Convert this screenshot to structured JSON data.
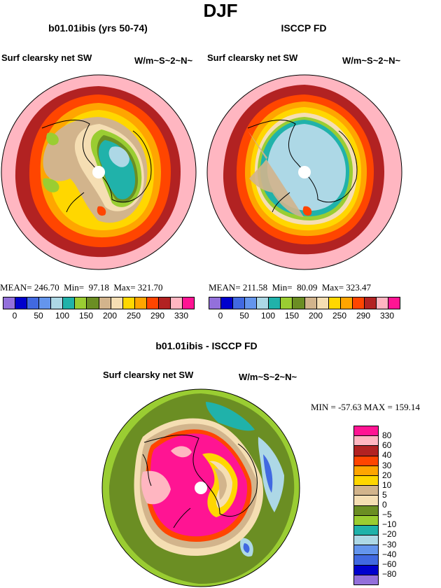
{
  "figure": {
    "season_title": "DJF",
    "variable": "Surf clearsky net SW",
    "units": "W/m~S~2~N~"
  },
  "panels": [
    {
      "title": "b01.01ibis (yrs 50-74)",
      "stats_text": "MEAN= 246.70  Min=  97.18  Max= 321.70",
      "mean": 246.7,
      "min": 97.18,
      "max": 321.7
    },
    {
      "title": "ISCCP FD",
      "stats_text": "MEAN= 211.58  Min=  80.09  Max= 323.47",
      "mean": 211.58,
      "min": 80.09,
      "max": 323.47
    }
  ],
  "diff_panel": {
    "title": "b01.01ibis - ISCCP FD",
    "minmax_text": "MIN = -57.63 MAX = 159.14",
    "min": -57.63,
    "max": 159.14
  },
  "colorbar_top": {
    "colors": [
      "#9370db",
      "#0000cd",
      "#4169e1",
      "#6495ed",
      "#add8e6",
      "#20b2aa",
      "#9acd32",
      "#6b8e23",
      "#d2b48c",
      "#f5deb3",
      "#ffd700",
      "#ffa500",
      "#ff4500",
      "#b22222",
      "#ffb6c1",
      "#ff1493"
    ],
    "labels": [
      "0",
      "50",
      "100",
      "150",
      "200",
      "250",
      "290",
      "330"
    ]
  },
  "colorbar_diff": {
    "colors": [
      "#ff1493",
      "#ffb6c1",
      "#b22222",
      "#ff4500",
      "#ffa500",
      "#ffd700",
      "#d2b48c",
      "#f5deb3",
      "#6b8e23",
      "#9acd32",
      "#20b2aa",
      "#add8e6",
      "#6495ed",
      "#4169e1",
      "#0000cd",
      "#9370db"
    ],
    "labels": [
      "80",
      "60",
      "40",
      "30",
      "20",
      "10",
      "5",
      "0",
      "−5",
      "−10",
      "−20",
      "−30",
      "−40",
      "−60",
      "−80"
    ]
  }
}
